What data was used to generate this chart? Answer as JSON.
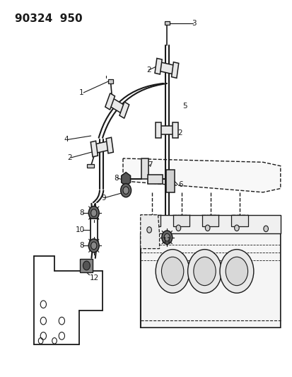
{
  "title": "90324  950",
  "bg_color": "#ffffff",
  "lc": "#1a1a1a",
  "figsize": [
    4.14,
    5.33
  ],
  "dpi": 100,
  "title_fontsize": 11,
  "label_fontsize": 7.5,
  "pipe_lw": 1.5,
  "thin_lw": 0.8,
  "clamp_lw": 1.1
}
